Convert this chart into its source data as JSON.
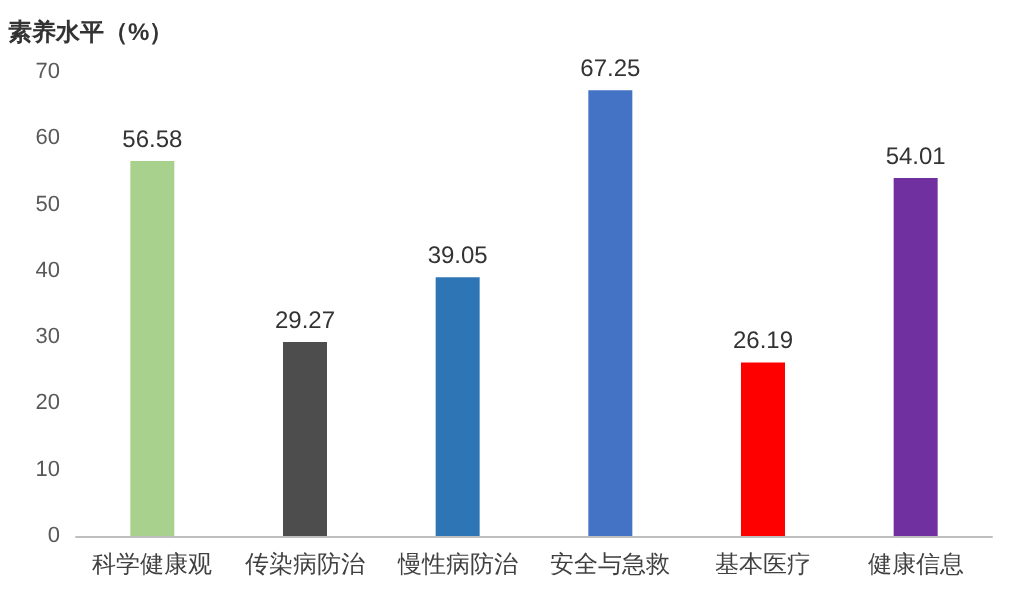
{
  "chart_data": {
    "type": "bar",
    "ylabel": "素养水平（%）",
    "categories": [
      "科学健康观",
      "传染病防治",
      "慢性病防治",
      "安全与急救",
      "基本医疗",
      "健康信息"
    ],
    "values": [
      56.58,
      29.27,
      39.05,
      67.25,
      26.19,
      54.01
    ],
    "colors": [
      "#a9d18e",
      "#4d4d4d",
      "#2e75b6",
      "#4472c4",
      "#ff0000",
      "#7030a0"
    ],
    "ylim": [
      0,
      70
    ],
    "yticks": [
      0,
      10,
      20,
      30,
      40,
      50,
      60,
      70
    ],
    "grid": false,
    "data_labels": true
  }
}
